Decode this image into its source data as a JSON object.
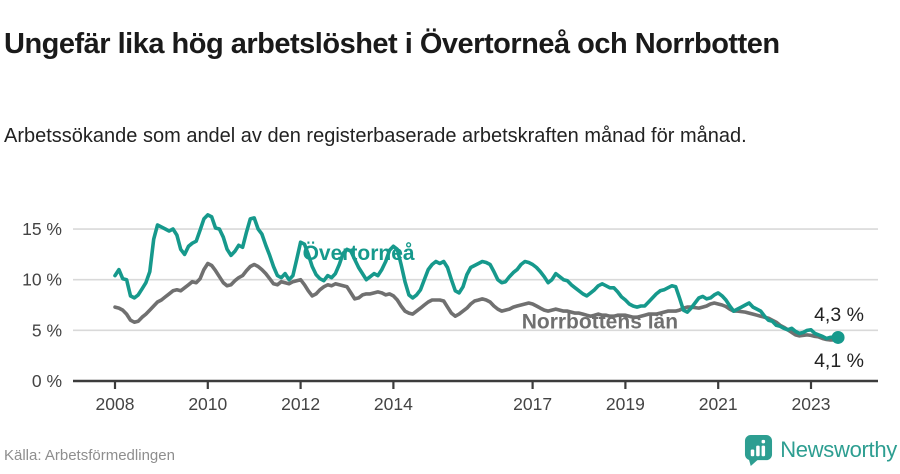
{
  "header": {
    "title": "Ungefär lika hög arbetslöshet i Övertorneå och Norrbotten",
    "subtitle": "Arbetssökande som andel av den registerbaserade arbetskraften månad för månad."
  },
  "footer": {
    "source": "Källa: Arbetsförmedlingen",
    "brand": "Newsworthy"
  },
  "colors": {
    "accent_teal": "#16998c",
    "line_gray": "#707070",
    "brand_teal": "#2d9e91",
    "grid": "#d9d9d9",
    "axis": "#3c3c3c",
    "axis_text": "#444444",
    "value_text": "#222222"
  },
  "chart_data": {
    "type": "line",
    "title": "Ungefär lika hög arbetslöshet i Övertorneå och Norrbotten",
    "subtitle": "Arbetssökande som andel av den registerbaserade arbetskraften månad för månad.",
    "unit": "%",
    "x_start": "2008-01",
    "x_end": "2023-08",
    "x_tick_years": [
      2008,
      2010,
      2012,
      2014,
      2017,
      2019,
      2021,
      2023
    ],
    "y_ticks": [
      {
        "value": 0,
        "label": "0 %"
      },
      {
        "value": 5,
        "label": "5 %"
      },
      {
        "value": 10,
        "label": "10 %"
      },
      {
        "value": 15,
        "label": "15 %"
      }
    ],
    "ylim": [
      0,
      17
    ],
    "grid": true,
    "legend_position": "inline-labels",
    "series": [
      {
        "name": "Övertorneå",
        "color": "#16998c",
        "end_label": "4,3 %",
        "label_anchor": {
          "year": 2013.25,
          "pct": 12.65
        },
        "values": [
          10.4,
          11.0,
          10.1,
          10.0,
          8.4,
          8.2,
          8.5,
          9.1,
          9.7,
          10.8,
          14.0,
          15.4,
          15.2,
          15.0,
          14.8,
          15.0,
          14.4,
          13.0,
          12.5,
          13.3,
          13.6,
          13.8,
          14.9,
          16.0,
          16.4,
          16.2,
          15.1,
          15.0,
          14.2,
          13.0,
          12.4,
          12.8,
          13.4,
          13.2,
          14.7,
          16.0,
          16.1,
          15.0,
          14.5,
          13.4,
          12.4,
          11.3,
          10.4,
          10.2,
          10.6,
          10.0,
          10.4,
          12.0,
          13.7,
          13.5,
          12.5,
          11.3,
          10.5,
          10.1,
          9.9,
          10.4,
          10.2,
          10.6,
          11.5,
          12.6,
          13.0,
          12.8,
          12.0,
          11.2,
          10.6,
          10.0,
          10.3,
          10.6,
          10.4,
          11.0,
          11.8,
          12.9,
          13.3,
          13.0,
          11.5,
          9.8,
          8.5,
          8.2,
          8.5,
          9.0,
          10.0,
          11.0,
          11.5,
          11.8,
          11.6,
          11.8,
          11.2,
          10.0,
          8.9,
          8.7,
          9.3,
          10.5,
          11.2,
          11.4,
          11.6,
          11.8,
          11.7,
          11.5,
          10.8,
          10.0,
          9.7,
          9.8,
          10.3,
          10.7,
          11.0,
          11.5,
          11.8,
          11.7,
          11.5,
          11.2,
          10.8,
          10.3,
          9.7,
          10.0,
          10.6,
          10.3,
          10.0,
          9.9,
          9.5,
          9.2,
          8.9,
          8.6,
          8.4,
          8.7,
          9.0,
          9.4,
          9.6,
          9.4,
          9.2,
          9.2,
          8.8,
          8.3,
          8.0,
          7.6,
          7.4,
          7.3,
          7.4,
          7.4,
          7.8,
          8.2,
          8.6,
          8.9,
          9.0,
          9.2,
          9.4,
          9.3,
          8.2,
          7.0,
          6.8,
          7.2,
          7.7,
          8.2,
          8.35,
          8.1,
          8.2,
          8.5,
          8.7,
          8.4,
          8.0,
          7.4,
          6.9,
          7.1,
          7.3,
          7.5,
          7.7,
          7.3,
          7.1,
          6.9,
          6.4,
          6.0,
          5.9,
          5.5,
          5.4,
          5.2,
          5.05,
          5.2,
          4.9,
          4.7,
          4.8,
          5.0,
          5.05,
          4.7,
          4.55,
          4.4,
          4.2,
          4.3,
          4.35,
          4.3
        ]
      },
      {
        "name": "Norrbottens län",
        "color": "#707070",
        "end_label": "4,1 %",
        "label_anchor": {
          "year": 2018.45,
          "pct": 5.85
        },
        "values": [
          7.3,
          7.2,
          7.0,
          6.6,
          6.0,
          5.8,
          5.9,
          6.3,
          6.6,
          7.0,
          7.4,
          7.8,
          8.0,
          8.3,
          8.6,
          8.9,
          9.0,
          8.9,
          9.2,
          9.5,
          9.8,
          9.7,
          10.1,
          11.0,
          11.6,
          11.4,
          10.9,
          10.3,
          9.7,
          9.4,
          9.5,
          9.9,
          10.2,
          10.4,
          10.9,
          11.3,
          11.5,
          11.3,
          11.0,
          10.6,
          10.1,
          9.6,
          9.5,
          9.8,
          9.7,
          9.6,
          9.8,
          9.9,
          10.0,
          9.5,
          8.9,
          8.4,
          8.6,
          9.0,
          9.3,
          9.5,
          9.4,
          9.6,
          9.5,
          9.4,
          9.3,
          8.7,
          8.1,
          8.2,
          8.5,
          8.6,
          8.6,
          8.7,
          8.8,
          8.7,
          8.5,
          8.6,
          8.4,
          8.0,
          7.4,
          6.9,
          6.7,
          6.6,
          6.9,
          7.2,
          7.5,
          7.8,
          8.0,
          8.0,
          8.0,
          7.9,
          7.3,
          6.7,
          6.4,
          6.6,
          6.9,
          7.2,
          7.6,
          7.9,
          8.0,
          8.1,
          8.0,
          7.8,
          7.4,
          7.1,
          6.9,
          7.0,
          7.1,
          7.3,
          7.4,
          7.5,
          7.6,
          7.7,
          7.6,
          7.4,
          7.2,
          7.0,
          6.9,
          7.0,
          7.1,
          7.0,
          6.9,
          6.9,
          6.8,
          6.7,
          6.7,
          6.6,
          6.5,
          6.4,
          6.5,
          6.6,
          6.5,
          6.5,
          6.4,
          6.4,
          6.5,
          6.5,
          6.5,
          6.4,
          6.3,
          6.3,
          6.4,
          6.5,
          6.6,
          6.6,
          6.6,
          6.7,
          6.8,
          6.9,
          6.9,
          6.9,
          7.0,
          7.2,
          7.3,
          7.3,
          7.25,
          7.2,
          7.3,
          7.4,
          7.6,
          7.7,
          7.6,
          7.5,
          7.35,
          7.1,
          6.9,
          6.9,
          6.85,
          6.8,
          6.7,
          6.6,
          6.5,
          6.4,
          6.3,
          6.2,
          6.0,
          5.8,
          5.5,
          5.3,
          5.05,
          4.8,
          4.55,
          4.45,
          4.5,
          4.55,
          4.5,
          4.4,
          4.35,
          4.2,
          4.1,
          4.05,
          4.05,
          4.1
        ]
      }
    ]
  }
}
